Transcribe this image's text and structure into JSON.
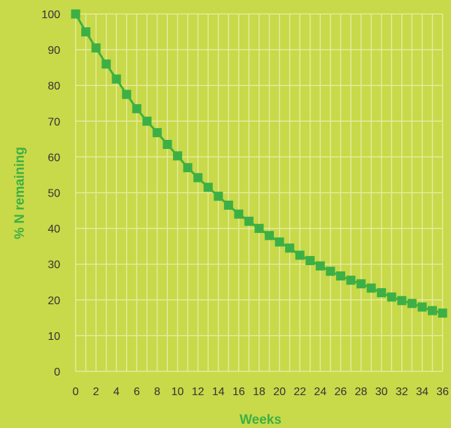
{
  "chart_data": {
    "type": "line",
    "title": "",
    "xlabel": "Weeks",
    "ylabel": "% N remaining",
    "xlim": [
      0,
      36
    ],
    "ylim": [
      0,
      100
    ],
    "x_ticks": [
      0,
      2,
      4,
      6,
      8,
      10,
      12,
      14,
      16,
      18,
      20,
      22,
      24,
      26,
      28,
      30,
      32,
      34,
      36
    ],
    "y_ticks": [
      0,
      10,
      20,
      30,
      40,
      50,
      60,
      70,
      80,
      90,
      100
    ],
    "x_minor_step": 1,
    "grid": true,
    "colors": {
      "background": "#c8d94a",
      "grid": "#e4ec9e",
      "series": "#3cb044",
      "tick_text": "#333333",
      "axis_title": "#3cb044"
    },
    "series": [
      {
        "marker": "square",
        "x": [
          0,
          1,
          2,
          3,
          4,
          5,
          6,
          7,
          8,
          9,
          10,
          11,
          12,
          13,
          14,
          15,
          16,
          17,
          18,
          19,
          20,
          21,
          22,
          23,
          24,
          25,
          26,
          27,
          28,
          29,
          30,
          31,
          32,
          33,
          34,
          35,
          36
        ],
        "values": [
          100,
          95,
          90.5,
          86,
          81.8,
          77.5,
          73.5,
          70,
          66.8,
          63.5,
          60.3,
          57,
          54.2,
          51.5,
          49,
          46.5,
          44,
          42,
          40,
          38,
          36.2,
          34.5,
          32.5,
          31,
          29.5,
          28,
          26.7,
          25.5,
          24.5,
          23.3,
          22,
          20.8,
          19.8,
          19,
          18,
          17,
          16.3
        ]
      }
    ]
  }
}
